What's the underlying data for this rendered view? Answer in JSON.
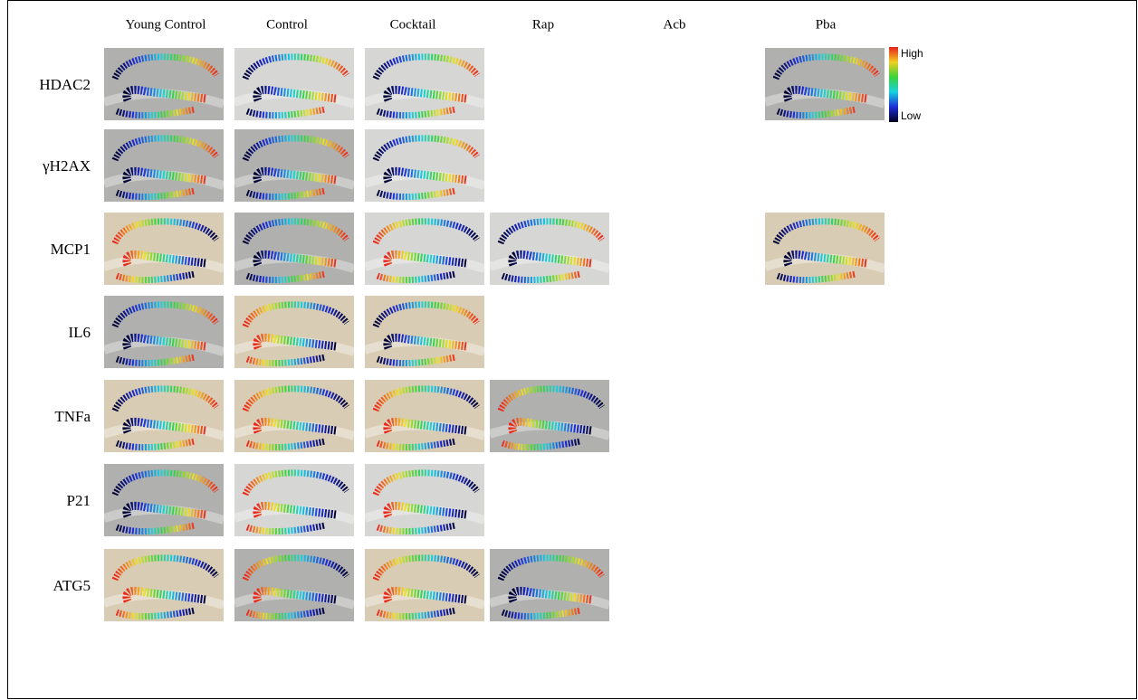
{
  "column_headers": [
    "Young Control",
    "Control",
    "Cocktail",
    "Rap",
    "Acb",
    "Pba"
  ],
  "row_labels": [
    "HDAC2",
    "γH2AX",
    "MCP1",
    "IL6",
    "TNFa",
    "P21",
    "ATG5"
  ],
  "colorbar": {
    "high": "High",
    "low": "Low"
  }
}
